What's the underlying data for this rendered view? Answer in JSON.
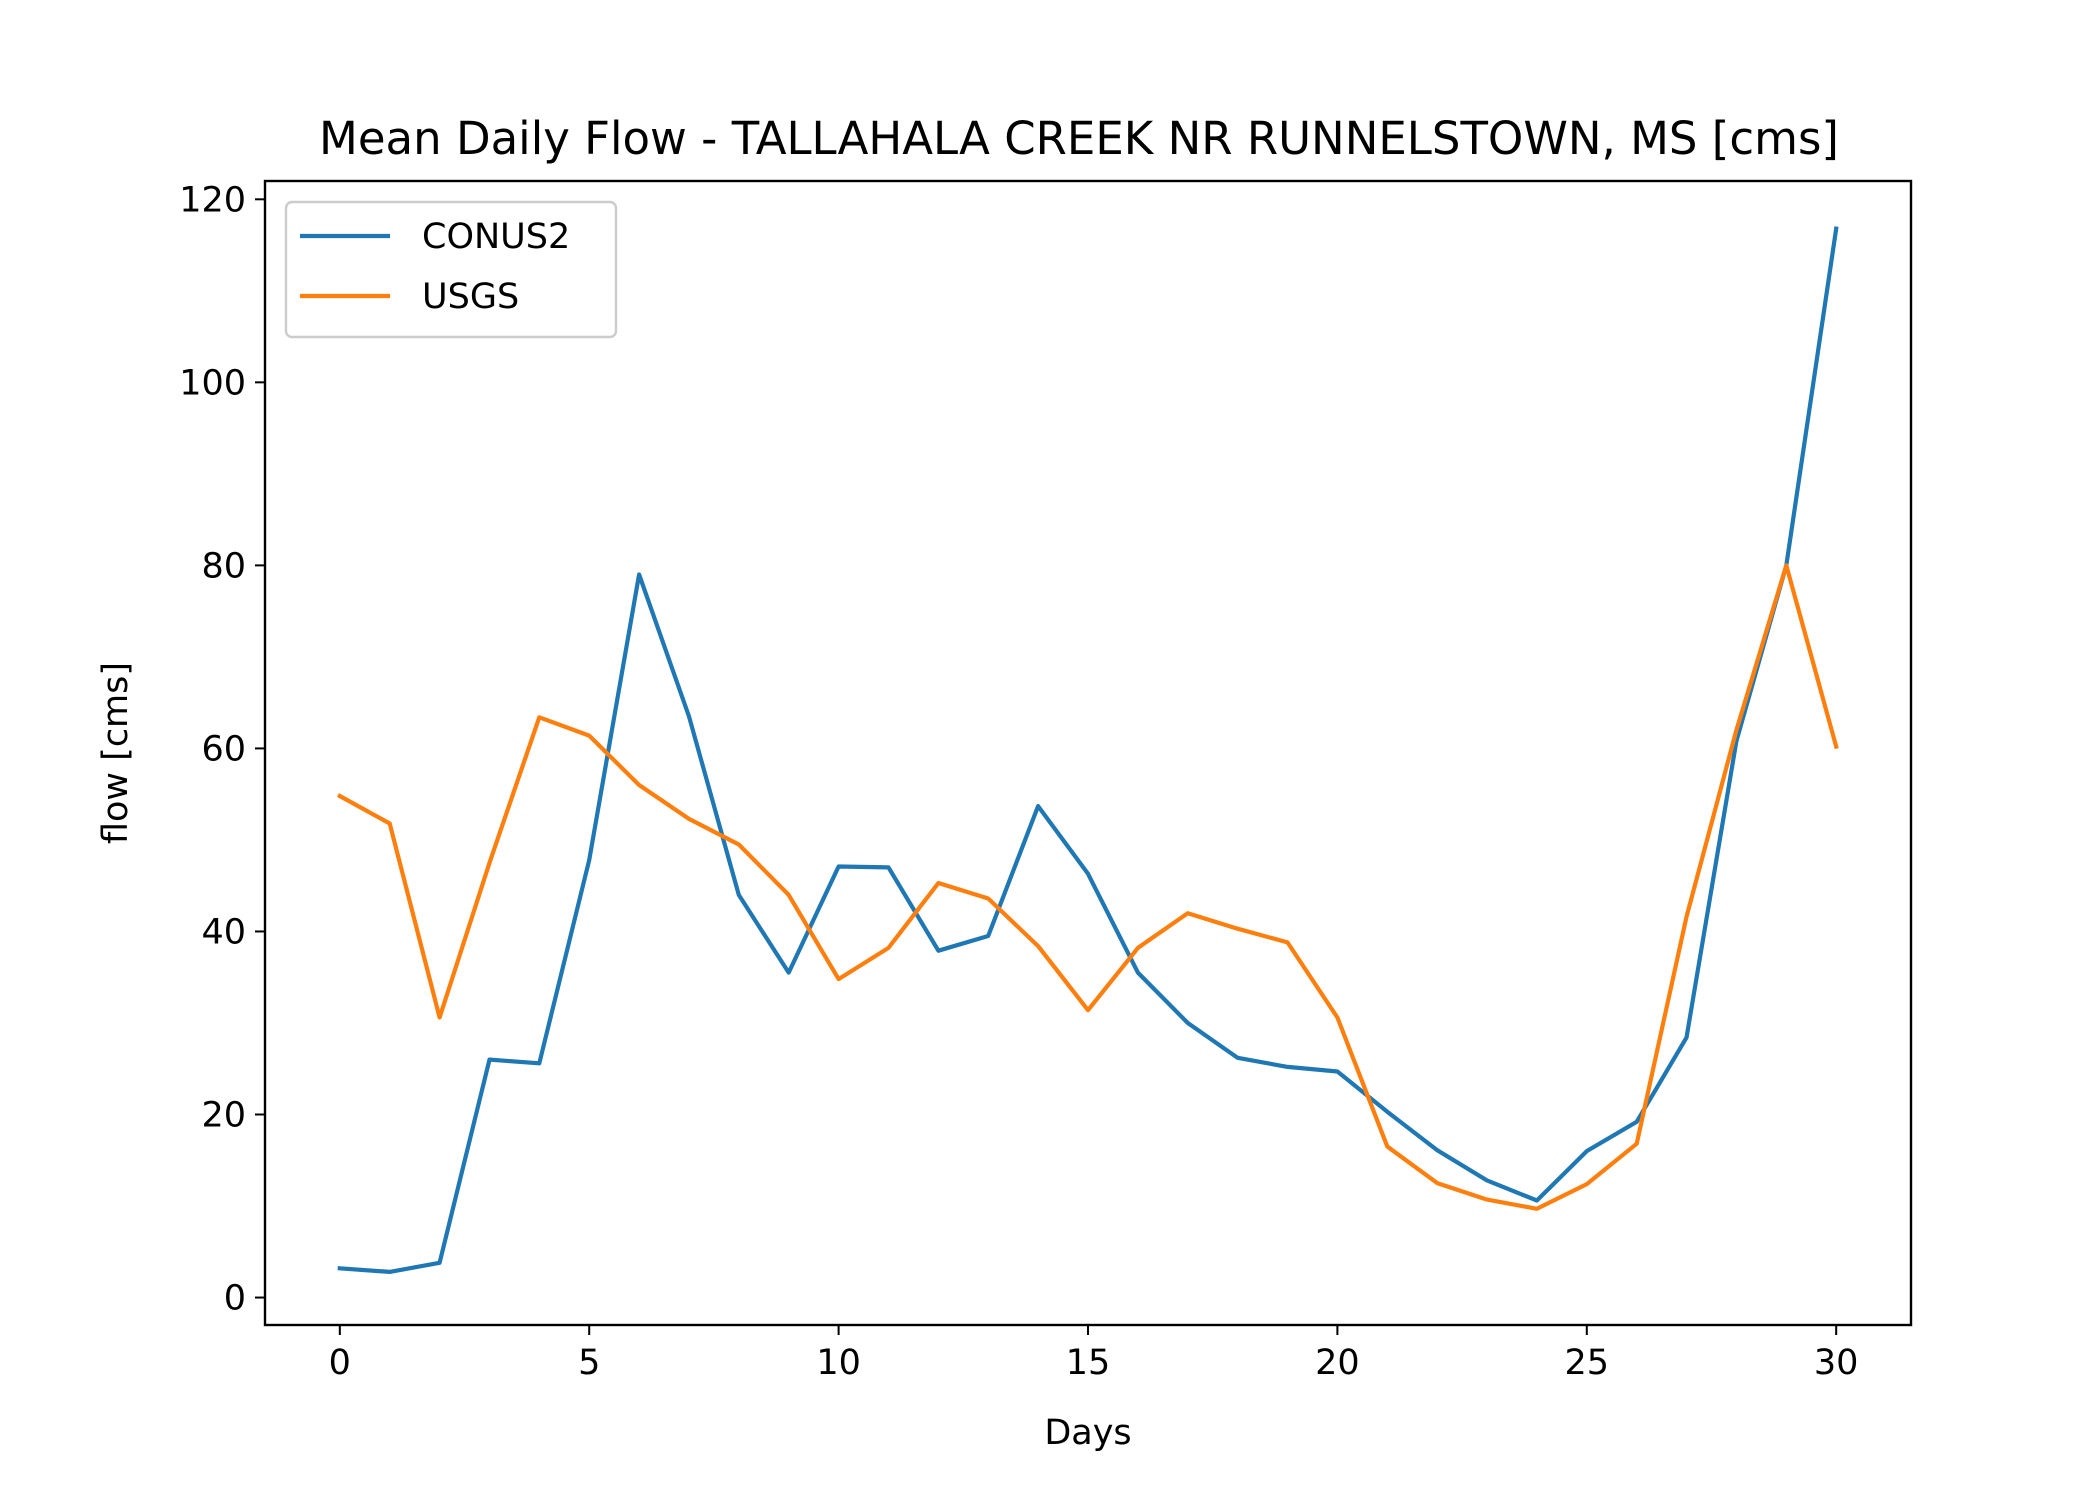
{
  "chart_data": {
    "type": "line",
    "title": "Mean Daily Flow - TALLAHALA CREEK NR RUNNELSTOWN, MS [cms]",
    "xlabel": "Days",
    "ylabel": "flow [cms]",
    "xlim": [
      -1.5,
      31.5
    ],
    "ylim": [
      -3,
      122
    ],
    "xticks": [
      0,
      5,
      10,
      15,
      20,
      25,
      30
    ],
    "yticks": [
      0,
      20,
      40,
      60,
      80,
      100,
      120
    ],
    "grid": false,
    "legend_position": "top-left",
    "x": [
      0,
      1,
      2,
      3,
      4,
      5,
      6,
      7,
      8,
      9,
      10,
      11,
      12,
      13,
      14,
      15,
      16,
      17,
      18,
      19,
      20,
      21,
      22,
      23,
      24,
      25,
      26,
      27,
      28,
      29,
      30
    ],
    "series": [
      {
        "name": "CONUS2",
        "color": "#1f77b4",
        "values": [
          3.2,
          2.8,
          3.8,
          26.0,
          25.6,
          47.8,
          79.0,
          63.5,
          44.0,
          35.5,
          47.1,
          47.0,
          37.9,
          39.5,
          53.7,
          46.3,
          35.5,
          30.0,
          26.2,
          25.2,
          24.7,
          20.3,
          16.1,
          12.8,
          10.6,
          16.0,
          19.2,
          28.4,
          60.8,
          80.0,
          116.8
        ]
      },
      {
        "name": "USGS",
        "color": "#ff7f0e",
        "values": [
          54.8,
          51.8,
          30.6,
          47.5,
          63.4,
          61.4,
          56.0,
          52.3,
          49.5,
          44.0,
          34.8,
          38.2,
          45.3,
          43.6,
          38.4,
          31.4,
          38.2,
          42.0,
          40.3,
          38.8,
          30.6,
          16.5,
          12.5,
          10.7,
          9.7,
          12.4,
          16.8,
          41.6,
          62.0,
          80.0,
          60.2
        ]
      }
    ]
  }
}
